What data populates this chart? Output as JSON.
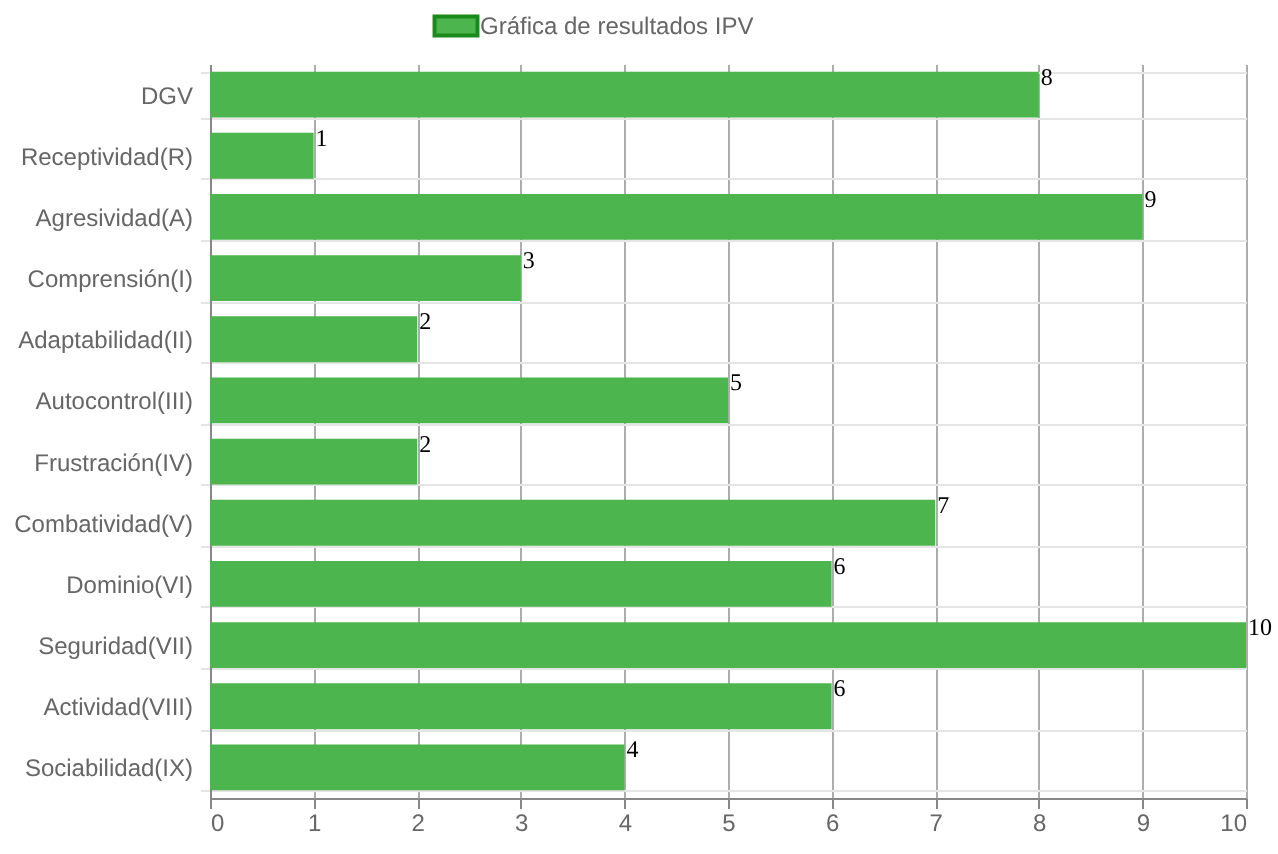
{
  "chart_data": {
    "type": "bar",
    "orientation": "horizontal",
    "categories": [
      "DGV",
      "Receptividad(R)",
      "Agresividad(A)",
      "Comprensión(I)",
      "Adaptabilidad(II)",
      "Autocontrol(III)",
      "Frustración(IV)",
      "Combatividad(V)",
      "Dominio(VI)",
      "Seguridad(VII)",
      "Actividad(VIII)",
      "Sociabilidad(IX)"
    ],
    "series": [
      {
        "name": "Gráfica de resultados IPV",
        "color": "#4db54d",
        "values": [
          8,
          1,
          9,
          3,
          2,
          5,
          2,
          7,
          6,
          10,
          6,
          4
        ]
      }
    ],
    "xlim": [
      0,
      10
    ],
    "xticks": [
      0,
      1,
      2,
      3,
      4,
      5,
      6,
      7,
      8,
      9,
      10
    ],
    "grid": true,
    "legend": "top",
    "data_labels": true
  }
}
